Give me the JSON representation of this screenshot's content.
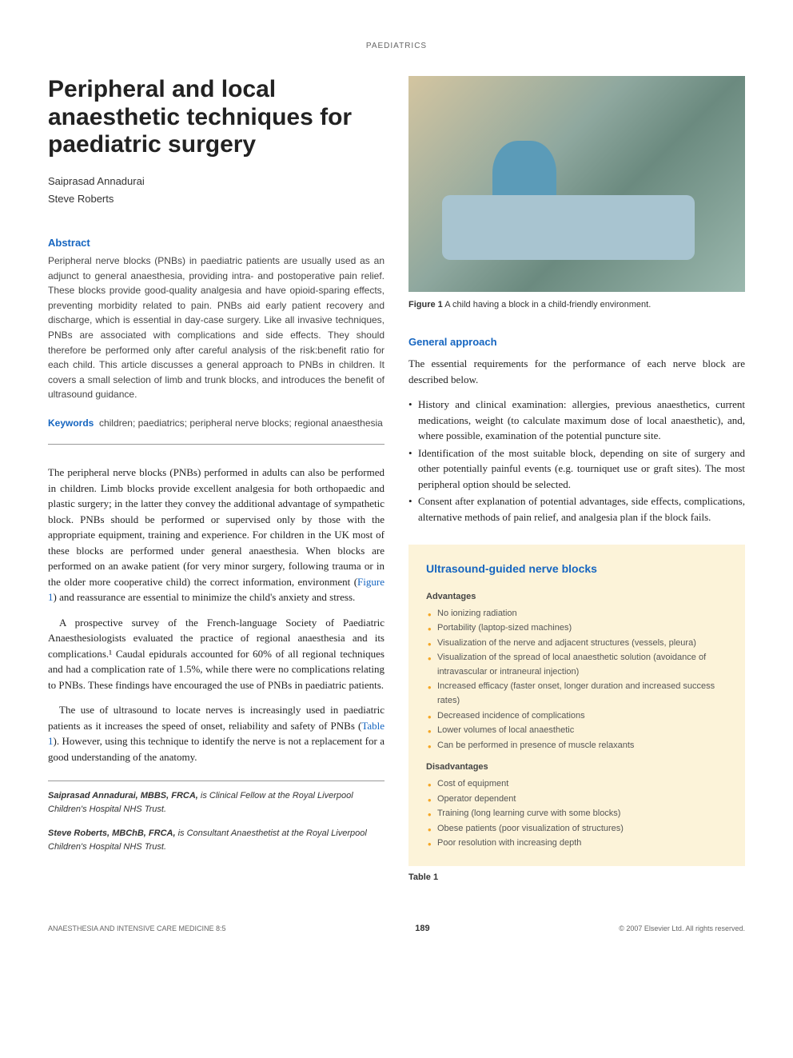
{
  "header": {
    "category": "PAEDIATRICS"
  },
  "article": {
    "title": "Peripheral and local anaesthetic techniques for paediatric surgery",
    "authors": [
      "Saiprasad Annadurai",
      "Steve Roberts"
    ]
  },
  "abstract": {
    "heading": "Abstract",
    "text": "Peripheral nerve blocks (PNBs) in paediatric patients are usually used as an adjunct to general anaesthesia, providing intra- and postoperative pain relief. These blocks provide good-quality analgesia and have opioid-sparing effects, preventing morbidity related to pain. PNBs aid early patient recovery and discharge, which is essential in day-case surgery. Like all invasive techniques, PNBs are associated with complications and side effects. They should therefore be performed only after careful analysis of the risk:benefit ratio for each child. This article discusses a general approach to PNBs in children. It covers a small selection of limb and trunk blocks, and introduces the benefit of ultrasound guidance."
  },
  "keywords": {
    "label": "Keywords",
    "text": "children; paediatrics; peripheral nerve blocks; regional anaesthesia"
  },
  "body": {
    "para1": "The peripheral nerve blocks (PNBs) performed in adults can also be performed in children. Limb blocks provide excellent analgesia for both orthopaedic and plastic surgery; in the latter they convey the additional advantage of sympathetic block. PNBs should be performed or supervised only by those with the appropriate equipment, training and experience. For children in the UK most of these blocks are performed under general anaesthesia. When blocks are performed on an awake patient (for very minor surgery, following trauma or in the older more cooperative child) the correct information, environment (",
    "para1_figref": "Figure 1",
    "para1_end": ") and reassurance are essential to minimize the child's anxiety and stress.",
    "para2": "A prospective survey of the French-language Society of Paediatric Anaesthesiologists evaluated the practice of regional anaesthesia and its complications.¹ Caudal epidurals accounted for 60% of all regional techniques and had a complication rate of 1.5%, while there were no complications relating to PNBs. These findings have encouraged the use of PNBs in paediatric patients.",
    "para3": "The use of ultrasound to locate nerves is increasingly used in paediatric patients as it increases the speed of onset, reliability and safety of PNBs (",
    "para3_tableref": "Table 1",
    "para3_end": "). However, using this technique to identify the nerve is not a replacement for a good understanding of the anatomy."
  },
  "bios": {
    "bio1_name": "Saiprasad Annadurai, MBBS, FRCA,",
    "bio1_text": " is Clinical Fellow at the Royal Liverpool Children's Hospital NHS Trust.",
    "bio2_name": "Steve Roberts, MBChB, FRCA,",
    "bio2_text": " is Consultant Anaesthetist at the Royal Liverpool Children's Hospital NHS Trust."
  },
  "figure1": {
    "label": "Figure 1",
    "caption": " A child having a block in a child-friendly environment."
  },
  "general_approach": {
    "heading": "General approach",
    "intro": "The essential requirements for the performance of each nerve block are described below.",
    "items": [
      "History and clinical examination: allergies, previous anaesthetics, current medications, weight (to calculate maximum dose of local anaesthetic), and, where possible, examination of the potential puncture site.",
      "Identification of the most suitable block, depending on site of surgery and other potentially painful events (e.g. tourniquet use or graft sites). The most peripheral option should be selected.",
      "Consent after explanation of potential advantages, side effects, complications, alternative methods of pain relief, and analgesia plan if the block fails."
    ]
  },
  "infobox": {
    "title": "Ultrasound-guided nerve blocks",
    "advantages_heading": "Advantages",
    "advantages": [
      "No ionizing radiation",
      "Portability (laptop-sized machines)",
      "Visualization of the nerve and adjacent structures (vessels, pleura)",
      "Visualization of the spread of local anaesthetic solution (avoidance of intravascular or intraneural injection)",
      "Increased efficacy (faster onset, longer duration and increased success rates)",
      "Decreased incidence of complications",
      "Lower volumes of local anaesthetic",
      "Can be performed in presence of muscle relaxants"
    ],
    "disadvantages_heading": "Disadvantages",
    "disadvantages": [
      "Cost of equipment",
      "Operator dependent",
      "Training (long learning curve with some blocks)",
      "Obese patients (poor visualization of structures)",
      "Poor resolution with increasing depth"
    ],
    "table_label": "Table 1"
  },
  "footer": {
    "left": "ANAESTHESIA AND INTENSIVE CARE MEDICINE 8:5",
    "page": "189",
    "right": "© 2007 Elsevier Ltd. All rights reserved."
  },
  "colors": {
    "accent_blue": "#1565c0",
    "box_bg": "#fcf3d9",
    "bullet_orange": "#f5a623",
    "text": "#333333"
  }
}
